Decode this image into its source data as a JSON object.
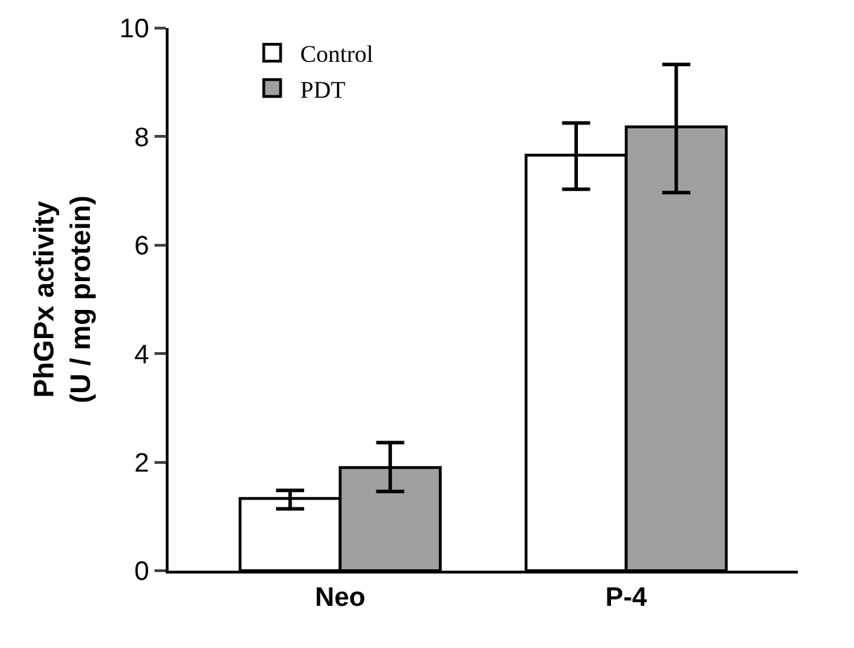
{
  "chart_data": {
    "type": "bar",
    "ylabel": "PhGPx activity\n(U / mg protein)",
    "categories": [
      "Neo",
      "P-4"
    ],
    "series": [
      {
        "name": "Control",
        "color": "#ffffff",
        "values": [
          1.33,
          7.66
        ],
        "errors": [
          [
            1.14,
            1.48
          ],
          [
            7.03,
            8.25
          ]
        ]
      },
      {
        "name": "PDT",
        "color": "#a0a0a0",
        "values": [
          1.9,
          8.18
        ],
        "errors": [
          [
            1.46,
            2.36
          ],
          [
            6.97,
            9.33
          ]
        ]
      }
    ],
    "ylim": [
      0,
      10
    ],
    "yticks": [
      0,
      2,
      4,
      6,
      8,
      10
    ],
    "legend": "top left"
  }
}
